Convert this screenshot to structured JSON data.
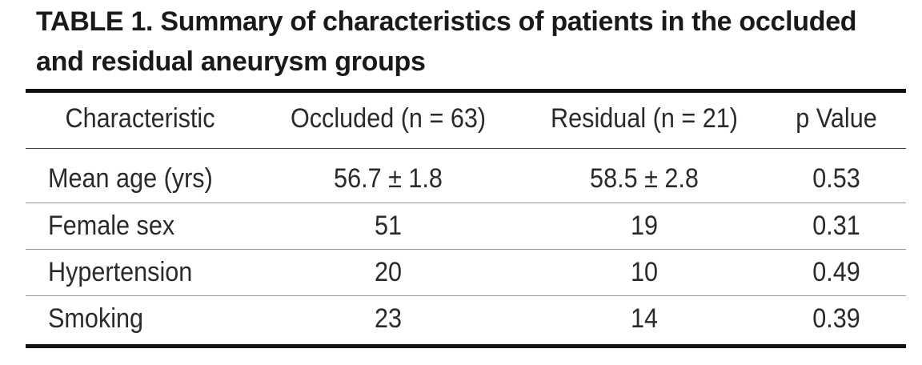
{
  "header": {
    "title": "TABLE 1. Summary of characteristics of patients in the occluded and residual aneurysm groups"
  },
  "table": {
    "columns": [
      "Characteristic",
      "Occluded (n = 63)",
      "Residual (n = 21)",
      "p Value"
    ],
    "rows": [
      [
        "Mean age (yrs)",
        "56.7 ± 1.8",
        "58.5 ± 2.8",
        "0.53"
      ],
      [
        "Female sex",
        "51",
        "19",
        "0.31"
      ],
      [
        "Hypertension",
        "20",
        "10",
        "0.49"
      ],
      [
        "Smoking",
        "23",
        "14",
        "0.39"
      ]
    ]
  }
}
